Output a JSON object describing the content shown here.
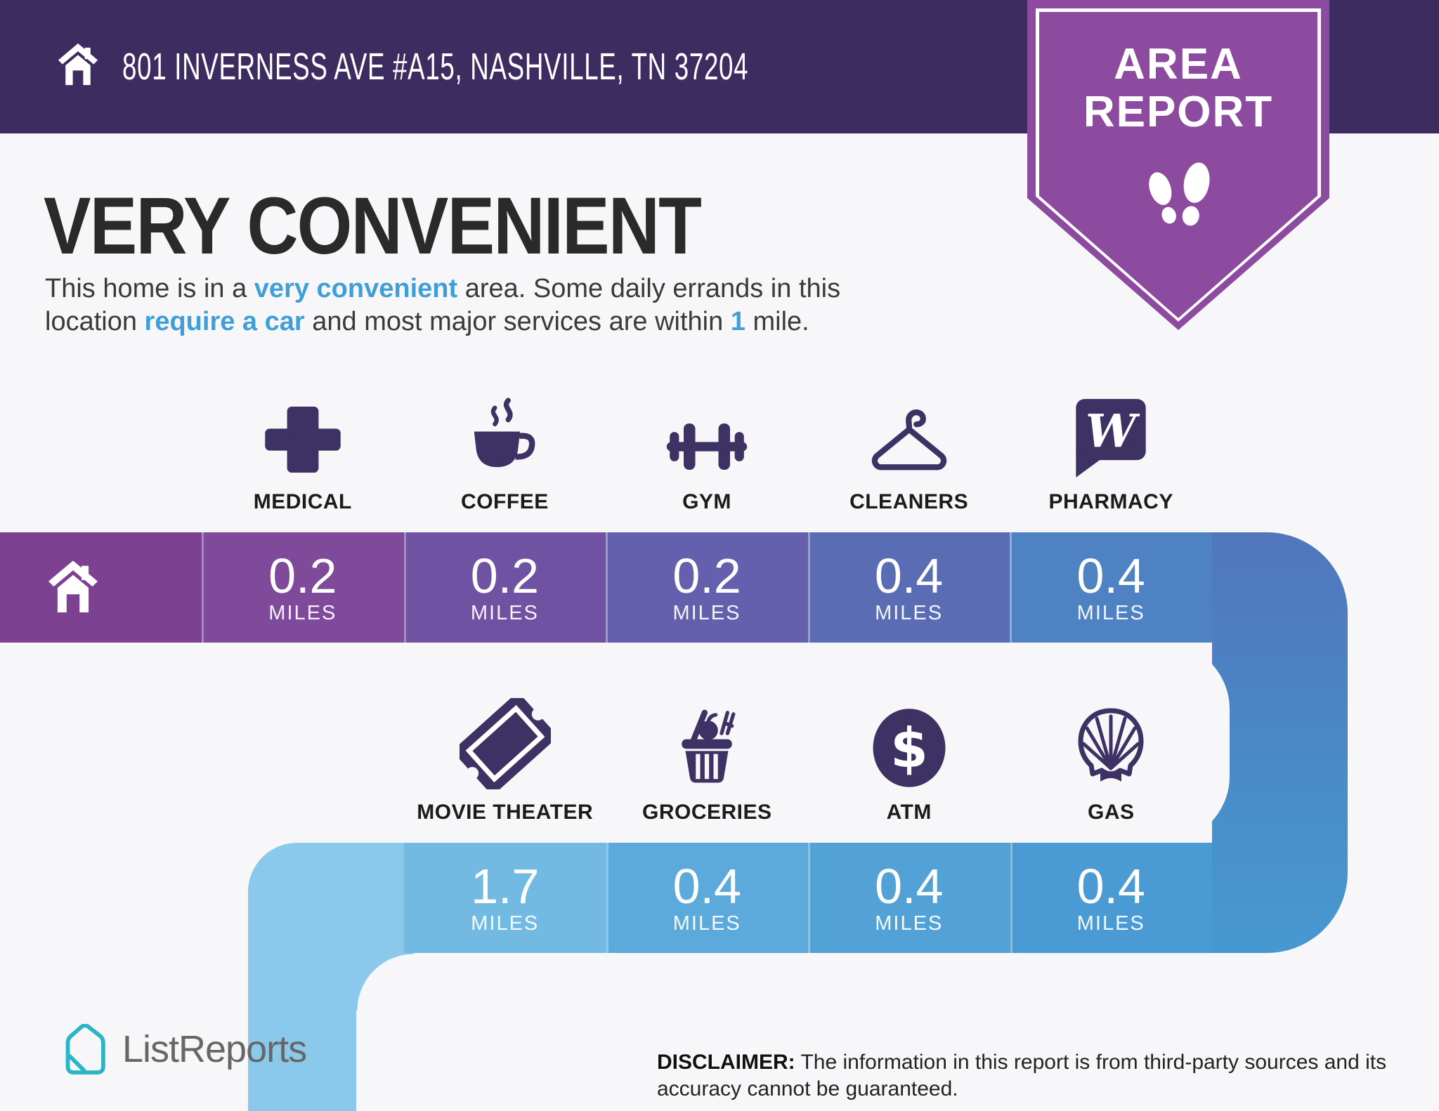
{
  "header": {
    "address": "801 INVERNESS AVE #A15, NASHVILLE, TN 37204"
  },
  "badge": {
    "title_line1": "AREA",
    "title_line2": "REPORT"
  },
  "headline": "VERY CONVENIENT",
  "subtitle_lines": [
    [
      {
        "text": "This home is in a ",
        "highlight": false
      },
      {
        "text": "very convenient",
        "highlight": true
      },
      {
        "text": " area. Some daily errands in this",
        "highlight": false
      }
    ],
    [
      {
        "text": "location ",
        "highlight": false
      },
      {
        "text": "require a car",
        "highlight": true
      },
      {
        "text": " and most major services are within ",
        "highlight": false
      },
      {
        "text": "1",
        "highlight": true
      },
      {
        "text": " mile.",
        "highlight": false
      }
    ]
  ],
  "rows": [
    {
      "services": [
        {
          "label": "MEDICAL",
          "icon": "medical-icon",
          "distance": "0.2",
          "unit": "MILES",
          "cell_color": "#7e4a99"
        },
        {
          "label": "COFFEE",
          "icon": "coffee-icon",
          "distance": "0.2",
          "unit": "MILES",
          "cell_color": "#6f52a2"
        },
        {
          "label": "GYM",
          "icon": "gym-icon",
          "distance": "0.2",
          "unit": "MILES",
          "cell_color": "#6560ad"
        },
        {
          "label": "CLEANERS",
          "icon": "cleaners-icon",
          "distance": "0.4",
          "unit": "MILES",
          "cell_color": "#5a6cb4"
        },
        {
          "label": "PHARMACY",
          "icon": "pharmacy-icon",
          "distance": "0.4",
          "unit": "MILES",
          "cell_color": "#4e82c2"
        }
      ]
    },
    {
      "services": [
        {
          "label": "MOVIE THEATER",
          "icon": "movie-theater-icon",
          "distance": "1.7",
          "unit": "MILES",
          "cell_color": "#73bae3"
        },
        {
          "label": "GROCERIES",
          "icon": "groceries-icon",
          "distance": "0.4",
          "unit": "MILES",
          "cell_color": "#5caadb"
        },
        {
          "label": "ATM",
          "icon": "atm-icon",
          "distance": "0.4",
          "unit": "MILES",
          "cell_color": "#52a2d7"
        },
        {
          "label": "GAS",
          "icon": "gas-icon",
          "distance": "0.4",
          "unit": "MILES",
          "cell_color": "#4a9bd3"
        }
      ]
    }
  ],
  "ribbon": {
    "home_cell_color": "#7d4191",
    "left_elbow_color": "#8bc9ec",
    "right_elbow_top": "#5176bc",
    "right_elbow_mid1": "#4b84c5",
    "right_elbow_mid2": "#4890cb",
    "right_elbow_bottom": "#4798d1"
  },
  "footer": {
    "brand": "ListReports",
    "disclaimer_label": "DISCLAIMER:",
    "disclaimer_line1": "The information in this report is from third-party sources and its",
    "disclaimer_line2": "accuracy cannot be guaranteed."
  },
  "colors": {
    "header_bg": "#3c2c5f",
    "badge_purple": "#8d4ba0",
    "page_bg": "#f7f6f8",
    "icon_purple": "#3d3263",
    "highlight_blue": "#3f9fd8",
    "headline_color": "#2b2a2a",
    "brand_teal": "#2ab6c4",
    "brand_text": "#676767"
  }
}
